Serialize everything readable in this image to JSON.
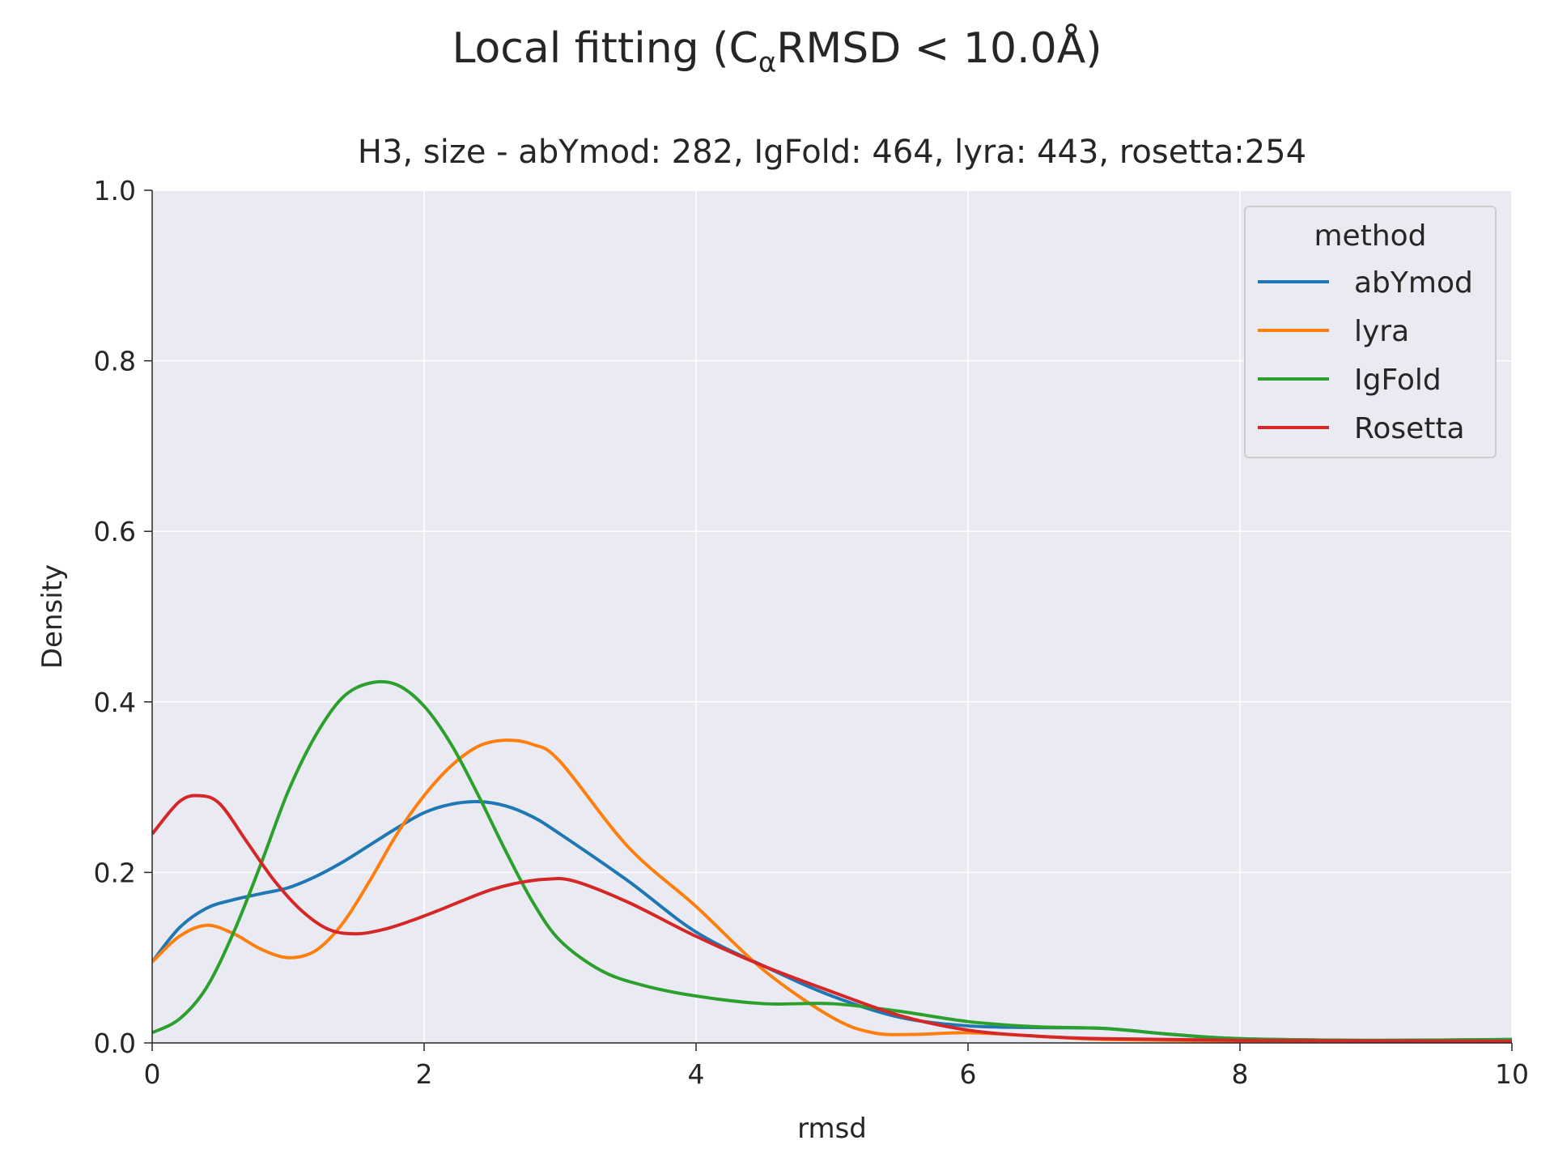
{
  "title": {
    "prefix": "Local fitting (C",
    "subscript": "α",
    "suffix": "RMSD  < 10.0Å)"
  },
  "chart_data": {
    "type": "line",
    "subtitle": "H3, size - abYmod: 282, IgFold: 464, lyra: 443, rosetta:254",
    "xlabel": "rmsd",
    "ylabel": "Density",
    "xlim": [
      0,
      10
    ],
    "ylim": [
      0,
      1.0
    ],
    "xticks": [
      0,
      2,
      4,
      6,
      8,
      10
    ],
    "xtick_labels": [
      "0",
      "2",
      "4",
      "6",
      "8",
      "10"
    ],
    "yticks": [
      0.0,
      0.2,
      0.4,
      0.6,
      0.8,
      1.0
    ],
    "ytick_labels": [
      "0.0",
      "0.2",
      "0.4",
      "0.6",
      "0.8",
      "1.0"
    ],
    "grid": true,
    "legend": {
      "title": "method",
      "placement": "top-right"
    },
    "series": [
      {
        "name": "abYmod",
        "color": "#1f77b4",
        "x": [
          0,
          0.2,
          0.4,
          0.6,
          0.8,
          1.0,
          1.2,
          1.4,
          1.6,
          1.8,
          2.0,
          2.2,
          2.4,
          2.6,
          2.8,
          3.0,
          3.5,
          4.0,
          4.5,
          5.0,
          5.5,
          6.0,
          6.5,
          7.0,
          7.5,
          8.0,
          9.0,
          10.0
        ],
        "y": [
          0.095,
          0.135,
          0.158,
          0.168,
          0.175,
          0.182,
          0.195,
          0.212,
          0.232,
          0.252,
          0.27,
          0.28,
          0.283,
          0.278,
          0.265,
          0.245,
          0.19,
          0.13,
          0.09,
          0.055,
          0.03,
          0.02,
          0.018,
          0.017,
          0.01,
          0.005,
          0.003,
          0.004
        ]
      },
      {
        "name": "lyra",
        "color": "#ff7f0e",
        "x": [
          0,
          0.2,
          0.4,
          0.6,
          0.8,
          1.0,
          1.2,
          1.4,
          1.6,
          1.8,
          2.0,
          2.2,
          2.4,
          2.6,
          2.8,
          3.0,
          3.5,
          4.0,
          4.5,
          5.0,
          5.3,
          5.6,
          6.0,
          6.5,
          7.0,
          8.0,
          10.0
        ],
        "y": [
          0.095,
          0.125,
          0.138,
          0.128,
          0.11,
          0.1,
          0.108,
          0.14,
          0.19,
          0.245,
          0.29,
          0.325,
          0.348,
          0.355,
          0.35,
          0.33,
          0.23,
          0.16,
          0.085,
          0.03,
          0.012,
          0.01,
          0.012,
          0.008,
          0.004,
          0.002,
          0.001
        ]
      },
      {
        "name": "IgFold",
        "color": "#2ca02c",
        "x": [
          0,
          0.2,
          0.4,
          0.6,
          0.8,
          1.0,
          1.2,
          1.4,
          1.6,
          1.8,
          2.0,
          2.2,
          2.4,
          2.6,
          2.8,
          3.0,
          3.3,
          3.6,
          4.0,
          4.5,
          5.0,
          5.5,
          6.0,
          6.5,
          7.0,
          7.5,
          8.0,
          9.0,
          10.0
        ],
        "y": [
          0.012,
          0.028,
          0.065,
          0.13,
          0.21,
          0.295,
          0.36,
          0.405,
          0.422,
          0.42,
          0.395,
          0.35,
          0.29,
          0.225,
          0.165,
          0.12,
          0.085,
          0.068,
          0.055,
          0.046,
          0.046,
          0.037,
          0.025,
          0.019,
          0.017,
          0.01,
          0.005,
          0.003,
          0.004
        ]
      },
      {
        "name": "Rosetta",
        "color": "#d62728",
        "x": [
          0,
          0.2,
          0.35,
          0.5,
          0.7,
          0.9,
          1.1,
          1.3,
          1.5,
          1.7,
          1.9,
          2.1,
          2.3,
          2.5,
          2.7,
          2.9,
          3.1,
          3.5,
          4.0,
          4.5,
          5.0,
          5.5,
          6.0,
          6.5,
          7.0,
          8.0,
          10.0
        ],
        "y": [
          0.245,
          0.283,
          0.29,
          0.28,
          0.235,
          0.19,
          0.155,
          0.133,
          0.128,
          0.133,
          0.143,
          0.155,
          0.168,
          0.18,
          0.188,
          0.192,
          0.19,
          0.165,
          0.125,
          0.09,
          0.06,
          0.032,
          0.015,
          0.008,
          0.005,
          0.003,
          0.002
        ]
      }
    ]
  }
}
